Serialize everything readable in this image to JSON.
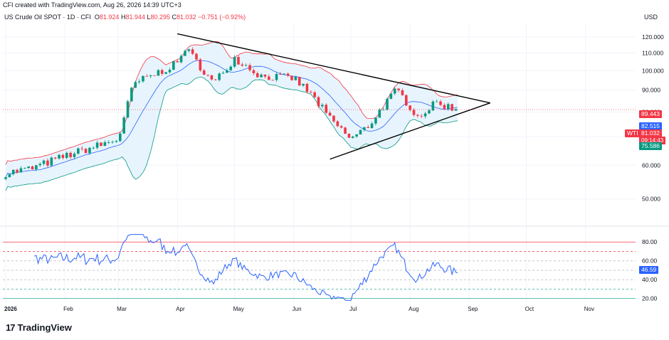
{
  "header": {
    "created_line": "CFI created with TradingView.com, Aug 26, 2026 14:39 UTC+3",
    "symbol": "US Crude Oil SPOT · 1D · CFI",
    "o_label": "O",
    "o_value": "81.924",
    "h_label": "H",
    "h_value": "81.944",
    "l_label": "L",
    "l_value": "80.295",
    "c_label": "C",
    "c_value": "81.032",
    "change": "−0.751 (−0.92%)",
    "currency": "USD"
  },
  "logo": {
    "mark": "17",
    "text": "TradingView"
  },
  "badges": {
    "upper_band": "89.443",
    "middle_band": "82.515",
    "symbol_tag": "WTI",
    "last_price": "81.032",
    "countdown": "09:14:43",
    "lower_band": "75.586",
    "rsi_value": "46.59"
  },
  "colors": {
    "up": "#089981",
    "down": "#f23645",
    "upper_band": "#f23645",
    "basis": "#2962ff",
    "lower_band": "#089981",
    "band_fill": "#e3f2fd",
    "rsi": "#2962ff",
    "trendline": "#000000"
  },
  "chart_data": [
    {
      "type": "candlestick",
      "title": "",
      "indicators": [
        "Bollinger Bands",
        "symmetrical triangle trendlines"
      ],
      "x_ticks": [
        "2026",
        "Feb",
        "Mar",
        "Apr",
        "May",
        "Jun",
        "Jul",
        "Aug",
        "Sep",
        "Oct",
        "Nov"
      ],
      "y_ticks": [
        "50.000",
        "60.000",
        "70.000",
        "80.000",
        "90.000",
        "100.000",
        "110.000",
        "120.000"
      ],
      "y_range": [
        44,
        129
      ],
      "scale": "log",
      "close_path_dates": [
        "2026-01-01",
        "2026-01-15",
        "2026-02-01",
        "2026-02-20",
        "2026-03-01",
        "2026-03-05",
        "2026-03-09",
        "2026-03-20",
        "2026-04-01",
        "2026-04-05",
        "2026-04-20",
        "2026-05-01",
        "2026-05-15",
        "2026-06-01",
        "2026-06-10",
        "2026-06-20",
        "2026-07-01",
        "2026-07-10",
        "2026-07-25",
        "2026-08-05",
        "2026-08-15",
        "2026-08-26"
      ],
      "close_path_values": [
        57.5,
        59,
        63,
        67,
        69,
        80,
        93,
        98,
        104,
        113,
        93,
        107,
        97,
        96,
        88,
        77,
        69,
        74,
        90,
        78,
        84,
        81.0
      ],
      "upper_trendline": {
        "start_date": "2026-04-01",
        "start_value": 122,
        "end_date": "2026-09-12",
        "end_value": 84
      },
      "lower_trendline": {
        "start_date": "2026-06-20",
        "start_value": 62,
        "end_date": "2026-09-12",
        "end_value": 84
      },
      "last": {
        "open": 81.924,
        "high": 81.944,
        "low": 80.295,
        "close": 81.032,
        "change": -0.751,
        "change_pct": -0.92
      },
      "bollinger_last": {
        "upper": 89.443,
        "basis": 82.515,
        "lower": 75.586
      }
    },
    {
      "type": "line",
      "title": "",
      "y_ticks": [
        "20.00",
        "40.00",
        "60.00",
        "80.00"
      ],
      "y_range": [
        16,
        90
      ],
      "levels": [
        20,
        30,
        40,
        50,
        60,
        70,
        80
      ],
      "last_value": 46.59
    }
  ]
}
